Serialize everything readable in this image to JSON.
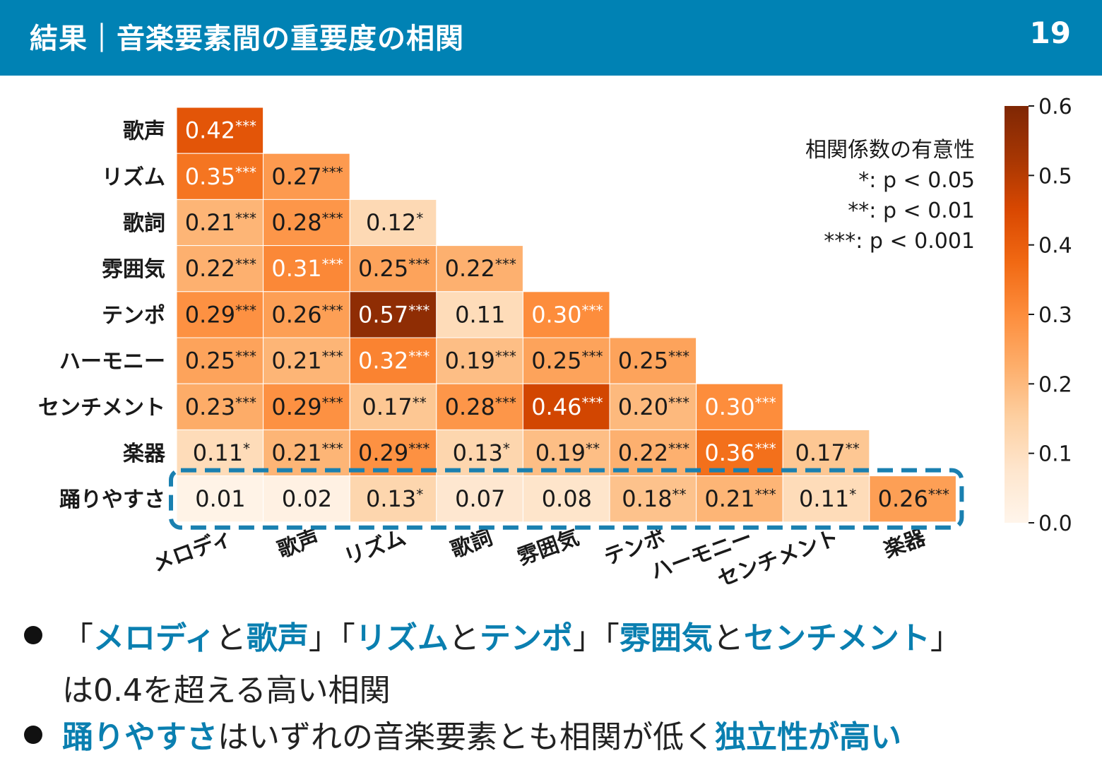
{
  "header": {
    "title": "結果｜音楽要素間の重要度の相関",
    "page_number": "19"
  },
  "chart_data": {
    "type": "heatmap",
    "title": "",
    "row_labels": [
      "歌声",
      "リズム",
      "歌詞",
      "雰囲気",
      "テンポ",
      "ハーモニー",
      "センチメント",
      "楽器",
      "踊りやすさ"
    ],
    "col_labels": [
      "メロディ",
      "歌声",
      "リズム",
      "歌詞",
      "雰囲気",
      "テンポ",
      "ハーモニー",
      "センチメント",
      "楽器"
    ],
    "values": [
      [
        0.42
      ],
      [
        0.35,
        0.27
      ],
      [
        0.21,
        0.28,
        0.12
      ],
      [
        0.22,
        0.31,
        0.25,
        0.22
      ],
      [
        0.29,
        0.26,
        0.57,
        0.11,
        0.3
      ],
      [
        0.25,
        0.21,
        0.32,
        0.19,
        0.25,
        0.25
      ],
      [
        0.23,
        0.29,
        0.17,
        0.28,
        0.46,
        0.2,
        0.3
      ],
      [
        0.11,
        0.21,
        0.29,
        0.13,
        0.19,
        0.22,
        0.36,
        0.17
      ],
      [
        0.01,
        0.02,
        0.13,
        0.07,
        0.08,
        0.18,
        0.21,
        0.11,
        0.26
      ]
    ],
    "significance": [
      [
        "***"
      ],
      [
        "***",
        "***"
      ],
      [
        "***",
        "***",
        "*"
      ],
      [
        "***",
        "***",
        "***",
        "***"
      ],
      [
        "***",
        "***",
        "***",
        "",
        "***"
      ],
      [
        "***",
        "***",
        "***",
        "***",
        "***",
        "***"
      ],
      [
        "***",
        "***",
        "**",
        "***",
        "***",
        "***",
        "***"
      ],
      [
        "*",
        "***",
        "***",
        "*",
        "**",
        "***",
        "***",
        "**"
      ],
      [
        "",
        "",
        "*",
        "",
        "",
        "**",
        "***",
        "*",
        "***"
      ]
    ],
    "colorbar": {
      "min": 0.0,
      "max": 0.6,
      "ticks": [
        "0.0",
        "0.1",
        "0.2",
        "0.3",
        "0.4",
        "0.5",
        "0.6"
      ],
      "colormap": "Oranges"
    },
    "legend": {
      "title": "相関係数の有意性",
      "items": [
        "*: p < 0.05",
        "**: p < 0.01",
        "***: p < 0.001"
      ]
    },
    "highlight_row": "踊りやすさ",
    "highlight_color": "#1a80b0"
  },
  "bullets": [
    {
      "line1": [
        {
          "text": "「",
          "hl": false
        },
        {
          "text": "メロディ",
          "hl": true
        },
        {
          "text": "と",
          "hl": false
        },
        {
          "text": "歌声",
          "hl": true
        },
        {
          "text": "」「",
          "hl": false
        },
        {
          "text": "リズム",
          "hl": true
        },
        {
          "text": "と",
          "hl": false
        },
        {
          "text": "テンポ",
          "hl": true
        },
        {
          "text": "」「",
          "hl": false
        },
        {
          "text": "雰囲気",
          "hl": true
        },
        {
          "text": "と",
          "hl": false
        },
        {
          "text": "センチメント",
          "hl": true
        },
        {
          "text": "」",
          "hl": false
        }
      ],
      "line2": "は0.4を超える高い相関"
    },
    {
      "line1": [
        {
          "text": "踊りやすさ",
          "hl": true
        },
        {
          "text": "はいずれの音楽要素とも相関が低く",
          "hl": false
        },
        {
          "text": "独立性が高い",
          "hl": true
        }
      ]
    }
  ],
  "colors": {
    "header_bg": "#0082b4",
    "highlight_text": "#0a7fb0"
  }
}
